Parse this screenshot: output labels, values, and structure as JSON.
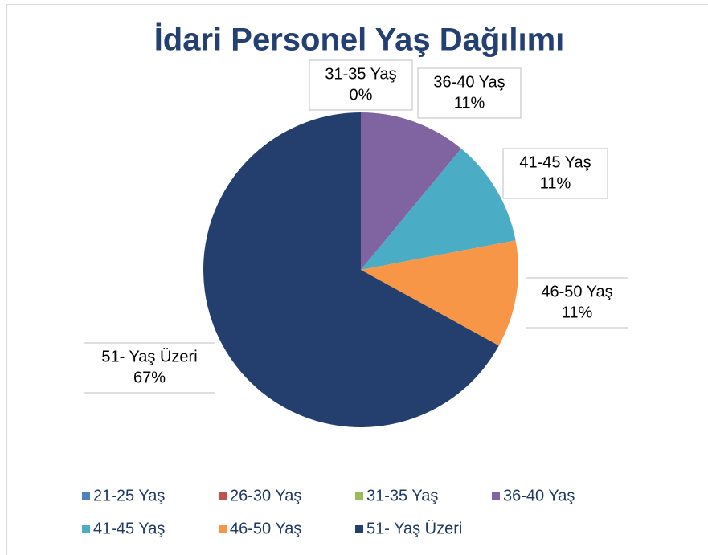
{
  "chart_data": {
    "type": "pie",
    "title": "İdari Personel Yaş Dağılımı",
    "categories": [
      "21-25 Yaş",
      "26-30 Yaş",
      "31-35 Yaş",
      "36-40 Yaş",
      "41-45 Yaş",
      "46-50 Yaş",
      "51- Yaş Üzeri"
    ],
    "values": [
      0,
      0,
      0,
      11,
      11,
      11,
      67
    ],
    "value_labels": [
      "0%",
      "0%",
      "0%",
      "11%",
      "11%",
      "11%",
      "67%"
    ],
    "colors": [
      "#4f81bd",
      "#c0504d",
      "#9bbb59",
      "#8064a2",
      "#4bacc6",
      "#f79646",
      "#243f6e"
    ],
    "legend": "bottom"
  }
}
